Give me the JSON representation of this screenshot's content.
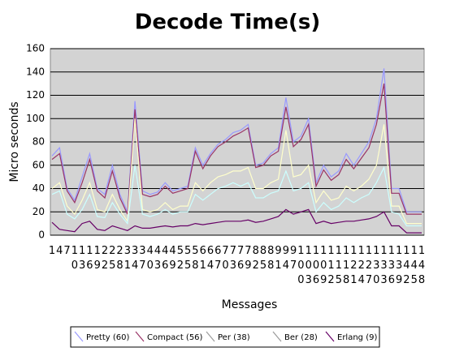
{
  "chart_data": {
    "type": "line",
    "title": "Decode Time(s)",
    "x_label": "Messages",
    "y_label": "Micro seconds",
    "categories": [
      "1",
      "4",
      "7",
      "10",
      "13",
      "16",
      "19",
      "22",
      "25",
      "28",
      "31",
      "34",
      "37",
      "40",
      "43",
      "46",
      "49",
      "52",
      "55",
      "58",
      "61",
      "64",
      "67",
      "70",
      "73",
      "76",
      "79",
      "82",
      "85",
      "88",
      "91",
      "94",
      "97",
      "100",
      "103",
      "106",
      "109",
      "112",
      "115",
      "118",
      "121",
      "124",
      "127",
      "130",
      "133",
      "136",
      "139",
      "142",
      "145",
      "148"
    ],
    "ylim": [
      0,
      160
    ],
    "yticks": [
      0,
      20,
      40,
      60,
      80,
      100,
      120,
      140,
      160
    ],
    "grid": true,
    "series": [
      {
        "name": "Pretty (60)",
        "color": "#9999ff",
        "values": [
          68,
          75,
          40,
          30,
          50,
          70,
          40,
          35,
          60,
          35,
          20,
          115,
          38,
          35,
          37,
          45,
          38,
          40,
          42,
          75,
          60,
          70,
          78,
          82,
          88,
          90,
          95,
          60,
          62,
          70,
          75,
          118,
          80,
          85,
          100,
          45,
          60,
          50,
          55,
          70,
          60,
          70,
          80,
          100,
          143,
          40,
          40,
          20,
          20,
          20
        ]
      },
      {
        "name": "Compact (56)",
        "color": "#993366",
        "values": [
          65,
          70,
          38,
          28,
          45,
          65,
          38,
          32,
          55,
          32,
          18,
          108,
          35,
          33,
          35,
          42,
          36,
          38,
          40,
          72,
          57,
          68,
          76,
          80,
          85,
          88,
          92,
          58,
          60,
          68,
          72,
          110,
          76,
          82,
          95,
          42,
          56,
          47,
          52,
          65,
          57,
          66,
          75,
          95,
          130,
          36,
          36,
          18,
          18,
          18
        ]
      },
      {
        "name": "Per (38)",
        "color": "#ffffcc",
        "values": [
          40,
          45,
          25,
          18,
          30,
          45,
          22,
          20,
          35,
          22,
          12,
          100,
          22,
          20,
          22,
          28,
          22,
          25,
          25,
          45,
          38,
          45,
          50,
          52,
          55,
          55,
          58,
          40,
          40,
          45,
          48,
          90,
          50,
          52,
          60,
          28,
          38,
          30,
          32,
          42,
          38,
          42,
          48,
          60,
          95,
          25,
          25,
          10,
          10,
          10
        ]
      },
      {
        "name": "Ber (28)",
        "color": "#ccffff",
        "values": [
          35,
          38,
          18,
          14,
          22,
          35,
          16,
          15,
          28,
          18,
          10,
          60,
          18,
          16,
          18,
          22,
          18,
          20,
          20,
          35,
          30,
          35,
          40,
          42,
          45,
          42,
          45,
          32,
          32,
          36,
          38,
          55,
          38,
          40,
          45,
          20,
          28,
          22,
          25,
          32,
          28,
          32,
          35,
          45,
          58,
          20,
          18,
          8,
          8,
          8
        ]
      },
      {
        "name": "Erlang (9)",
        "color": "#660066",
        "values": [
          11,
          5,
          4,
          3,
          10,
          12,
          5,
          4,
          8,
          6,
          4,
          8,
          6,
          6,
          7,
          8,
          7,
          8,
          8,
          10,
          9,
          10,
          11,
          12,
          12,
          12,
          13,
          11,
          12,
          14,
          16,
          22,
          18,
          20,
          22,
          10,
          12,
          10,
          11,
          12,
          12,
          13,
          14,
          16,
          20,
          8,
          8,
          2,
          2,
          2
        ]
      }
    ]
  }
}
